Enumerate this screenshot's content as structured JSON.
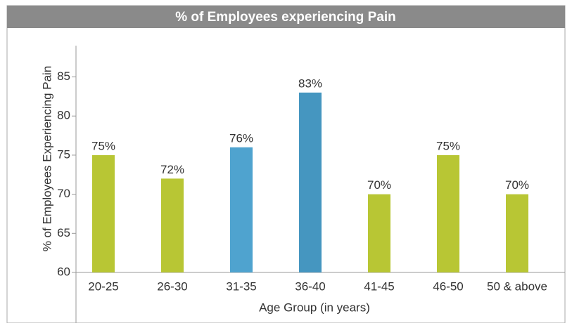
{
  "chart_data": {
    "type": "bar",
    "title": "% of Employees experiencing Pain",
    "x_label": "Age Group (in years)",
    "y_label": "% of Employees Experiencing Pain",
    "categories": [
      "20-25",
      "26-30",
      "31-35",
      "36-40",
      "41-45",
      "46-50",
      "50 & above"
    ],
    "values": [
      75,
      72,
      76,
      83,
      70,
      75,
      70
    ],
    "value_labels": [
      "75%",
      "72%",
      "76%",
      "83%",
      "70%",
      "75%",
      "70%"
    ],
    "colors": [
      "#b8c634",
      "#b8c634",
      "#4fa3cf",
      "#4596c0",
      "#b8c634",
      "#b8c634",
      "#b8c634"
    ],
    "ylim": [
      60,
      89
    ],
    "yticks": [
      60,
      65,
      70,
      75,
      80,
      85
    ],
    "grid": false
  }
}
